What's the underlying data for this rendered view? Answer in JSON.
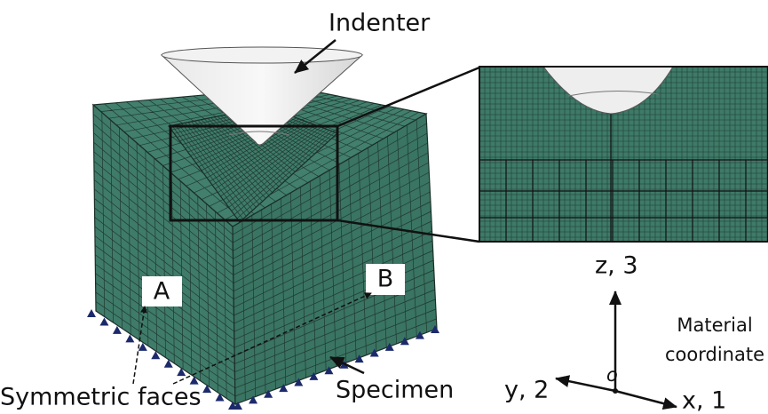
{
  "labels": {
    "indenter": "Indenter",
    "a": "A",
    "b": "B",
    "symmetric_faces": "Symmetric faces",
    "specimen": "Specimen",
    "z_axis": "z, 3",
    "y_axis": "y, 2",
    "x_axis": "x, 1",
    "origin": "o",
    "material_coordinate": [
      "Material",
      "coordinate"
    ]
  }
}
